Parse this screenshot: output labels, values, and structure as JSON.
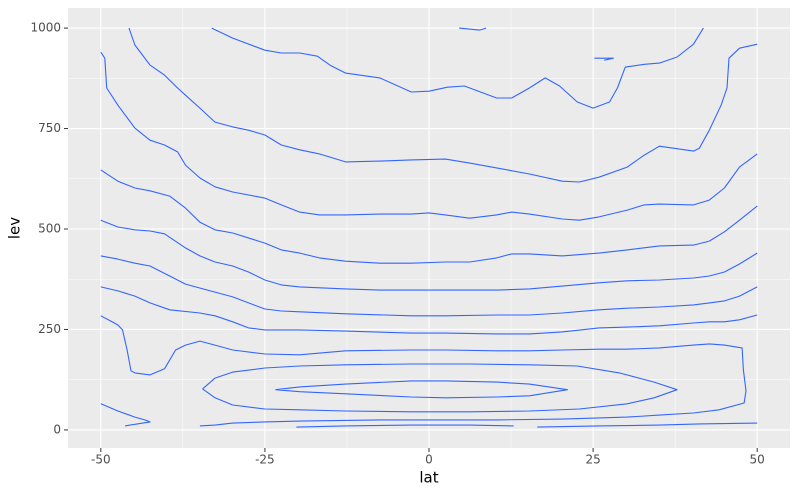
{
  "chart_data": {
    "type": "contour",
    "x_label": "lat",
    "y_label": "lev",
    "color": "#3366ff",
    "grid": true,
    "xlim": [
      -55,
      55
    ],
    "ylim": [
      -45,
      1050
    ],
    "xticks": [
      -50,
      -25,
      0,
      25,
      50
    ],
    "yticks": [
      0,
      250,
      500,
      750,
      1000
    ],
    "series": [
      {
        "x": [
          -33.1,
          -29.9,
          -25.0,
          -22.5,
          -19.7,
          -17.0,
          -15.1,
          -12.7,
          -7.5,
          -2.7,
          0,
          2.8,
          5.4,
          10.3,
          12.6,
          15.3,
          17.7,
          19.9,
          22.6,
          25.0,
          27.5,
          28.7,
          29.9,
          32.8,
          35.1,
          37.8,
          40.3,
          41.8
        ],
        "values": [
          1000,
          975,
          945,
          938,
          938,
          930,
          908,
          888,
          876,
          841,
          843,
          853,
          856,
          826,
          826,
          851,
          876,
          856,
          816,
          801,
          816,
          851,
          903,
          910,
          913,
          928,
          960,
          1000
        ]
      },
      {
        "x": [
          -45.7,
          -44.8,
          -42.5,
          -40.3,
          -38.3,
          -37.1,
          -34.9,
          -32.6,
          -29.9,
          -27.5,
          -25.0,
          -22.5,
          -19.7,
          -16.7,
          -12.7,
          -7.5,
          -2.7,
          2.5,
          6.2,
          10.3,
          15.3,
          20.3,
          22.9,
          25.9,
          30.2,
          32.8,
          35.1,
          40.3,
          41.2,
          42.7,
          44.5,
          45.4,
          45.7,
          47.3,
          50
        ],
        "values": [
          1000,
          958,
          908,
          883,
          851,
          833,
          801,
          766,
          754,
          746,
          734,
          709,
          697,
          687,
          667,
          669,
          672,
          674,
          664,
          652,
          637,
          619,
          617,
          629,
          654,
          684,
          706,
          694,
          701,
          746,
          808,
          851,
          925,
          950,
          960
        ]
      },
      {
        "x": [
          -50,
          -49.4,
          -49.1,
          -47.4,
          -44.8,
          -42.5,
          -40.3,
          -38.3,
          -37.1,
          -34.9,
          -32.6,
          -29.9,
          -25.0,
          -22.5,
          -19.7,
          -16.7,
          -12.7,
          -7.5,
          -2.7,
          0,
          2.5,
          6.2,
          10.3,
          12.6,
          15.3,
          20.3,
          22.9,
          25.9,
          30.2,
          32.8,
          35.1,
          40.3,
          42.7,
          45.0,
          47.3,
          50
        ],
        "values": [
          940,
          925,
          851,
          808,
          751,
          721,
          709,
          692,
          659,
          627,
          605,
          592,
          577,
          560,
          542,
          535,
          535,
          537,
          537,
          540,
          535,
          527,
          535,
          542,
          537,
          525,
          522,
          530,
          547,
          560,
          562,
          560,
          572,
          602,
          654,
          687
        ]
      },
      {
        "x": [
          -50,
          -47.4,
          -44.8,
          -42.5,
          -39.5,
          -37.1,
          -34.9,
          -32.6,
          -29.9,
          -25.0,
          -22.5,
          -19.7,
          -16.7,
          -12.7,
          -7.5,
          -2.7,
          2.5,
          6.2,
          10.3,
          12.6,
          15.3,
          20.3,
          25.9,
          30.2,
          35.1,
          40.3,
          42.7,
          45.0,
          47.3,
          50
        ],
        "values": [
          647,
          619,
          602,
          595,
          582,
          552,
          517,
          498,
          490,
          465,
          448,
          440,
          428,
          420,
          415,
          415,
          418,
          418,
          428,
          438,
          438,
          433,
          440,
          448,
          458,
          460,
          470,
          493,
          522,
          557
        ]
      },
      {
        "x": [
          -50,
          -47.4,
          -44.8,
          -42.5,
          -40.3,
          -37.1,
          -34.9,
          -32.6,
          -29.9,
          -27.5,
          -25.0,
          -22.5,
          -19.7,
          -12.7,
          -7.5,
          -2.7,
          2.5,
          10.3,
          15.3,
          20.3,
          25.9,
          30.2,
          35.1,
          40.3,
          42.7,
          45.0,
          47.3,
          50
        ],
        "values": [
          522,
          505,
          498,
          495,
          488,
          453,
          433,
          418,
          408,
          393,
          373,
          361,
          356,
          351,
          348,
          348,
          348,
          348,
          351,
          358,
          366,
          371,
          373,
          378,
          383,
          393,
          413,
          440
        ]
      },
      {
        "x": [
          -50,
          -47.4,
          -44.8,
          -42.5,
          -39.5,
          -37.1,
          -32.6,
          -29.9,
          -25.0,
          -22.5,
          -19.7,
          -12.7,
          -2.7,
          2.5,
          10.3,
          15.3,
          20.3,
          25.9,
          30.2,
          35.1,
          40.3,
          42.7,
          45.0,
          47.3,
          50
        ],
        "values": [
          433,
          425,
          415,
          408,
          383,
          363,
          343,
          331,
          301,
          296,
          294,
          289,
          284,
          284,
          286,
          286,
          291,
          299,
          303,
          306,
          311,
          316,
          321,
          333,
          356
        ]
      },
      {
        "x": [
          -50,
          -47.4,
          -44.8,
          -42.5,
          -39.5,
          -34.9,
          -32.6,
          -29.9,
          -27.5,
          -25.0,
          -19.7,
          -12.7,
          -2.7,
          2.5,
          10.3,
          15.3,
          20.3,
          25.9,
          30.2,
          35.1,
          40.3,
          42.7,
          45.0,
          47.3,
          50
        ],
        "values": [
          356,
          346,
          333,
          316,
          299,
          291,
          284,
          269,
          254,
          249,
          249,
          246,
          241,
          241,
          239,
          239,
          244,
          254,
          256,
          259,
          266,
          269,
          269,
          274,
          286
        ]
      },
      {
        "x": [
          -50,
          -48.5,
          -47.4,
          -46.7,
          -46.0,
          -45.4,
          -44.8,
          -42.5,
          -40.3,
          -38.6,
          -37.1,
          -34.9,
          -32.6,
          -29.9,
          -25.0,
          -19.7,
          -12.7,
          -2.7,
          2.5,
          10.3,
          15.3,
          20.3,
          25.9,
          30.2,
          35.1,
          40.3,
          42.7,
          45.0,
          47.7,
          47.9,
          48.3,
          48.0,
          44.2,
          40.3,
          35.1,
          30.2,
          20.3,
          10.3,
          2.5,
          -7.5,
          -19.7,
          -25.0,
          -29.9,
          -32.6,
          -34.9
        ],
        "values": [
          284,
          271,
          261,
          249,
          199,
          147,
          142,
          137,
          152,
          199,
          211,
          221,
          211,
          199,
          189,
          187,
          197,
          199,
          199,
          197,
          197,
          199,
          201,
          201,
          204,
          211,
          214,
          211,
          204,
          149,
          97,
          67,
          50,
          42,
          37,
          32,
          27,
          25,
          25,
          25,
          22,
          20,
          17,
          12,
          10
        ]
      },
      {
        "x": [
          -34.5,
          -32.6,
          -29.9,
          -25.0,
          -19.7,
          -12.7,
          -2.7,
          6.2,
          15.3,
          22.6,
          29.0,
          34.3,
          37.8,
          34.3,
          30.2,
          22.9,
          15.3,
          6.2,
          -2.7,
          -12.7,
          -19.7,
          -25.0,
          -29.9,
          -32.6,
          -34.5
        ],
        "values": [
          102,
          129,
          144,
          154,
          159,
          162,
          164,
          164,
          162,
          159,
          142,
          119,
          100,
          80,
          65,
          52,
          47,
          45,
          45,
          47,
          50,
          52,
          62,
          80,
          102
        ]
      },
      {
        "x": [
          -23.4,
          -19.7,
          -12.7,
          -2.7,
          2.5,
          10.3,
          15.3,
          21.1,
          15.3,
          10.3,
          2.5,
          -2.7,
          -12.7,
          -19.7,
          -23.4
        ],
        "values": [
          100,
          107,
          114,
          122,
          122,
          119,
          114,
          100,
          85,
          82,
          80,
          82,
          90,
          95,
          100
        ]
      },
      {
        "x": [
          -50,
          -47.4,
          -44.8,
          -43.3,
          -42.5,
          -46.3
        ],
        "values": [
          65,
          47,
          32,
          25,
          20,
          10
        ]
      },
      {
        "x": [
          -20.2,
          -12.7,
          -2.7,
          6.2,
          12.9
        ],
        "values": [
          7,
          10,
          12,
          12,
          10
        ]
      },
      {
        "x": [
          16.5,
          25.9,
          35.1,
          41.2,
          50
        ],
        "values": [
          7,
          10,
          12,
          15,
          17
        ]
      },
      {
        "x": [
          4.6,
          7.7,
          8.7
        ],
        "values": [
          1000,
          995,
          1000
        ]
      },
      {
        "x": [
          25.2,
          28.1,
          26.7
        ],
        "values": [
          925,
          925,
          920
        ]
      }
    ]
  }
}
